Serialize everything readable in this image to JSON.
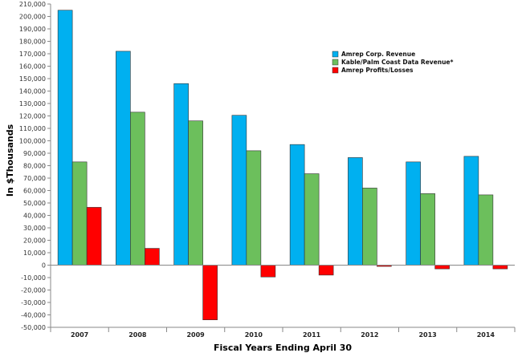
{
  "chart_data": {
    "type": "bar",
    "title": "",
    "xlabel": "Fiscal Years Ending April 30",
    "ylabel": "In $Thousands",
    "categories": [
      "2007",
      "2008",
      "2009",
      "2010",
      "2011",
      "2012",
      "2013",
      "2014"
    ],
    "ylim": [
      -50000,
      210000
    ],
    "ytick_step": 10000,
    "grid": false,
    "legend_position": "top-right",
    "series": [
      {
        "name": "Amrep Corp. Revenue",
        "color": "#00b0f0",
        "values": [
          205000,
          172000,
          146000,
          120500,
          97000,
          86500,
          83000,
          87500
        ]
      },
      {
        "name": "Kable/Palm Coast Data Revenue*",
        "color": "#6cbf5c",
        "values": [
          83000,
          123000,
          116000,
          92000,
          73500,
          62000,
          57500,
          56500
        ]
      },
      {
        "name": "Amrep Profits/Losses",
        "color": "#ff0000",
        "values": [
          46500,
          13500,
          -44000,
          -9500,
          -8000,
          -1000,
          -3000,
          -3000
        ]
      }
    ]
  }
}
